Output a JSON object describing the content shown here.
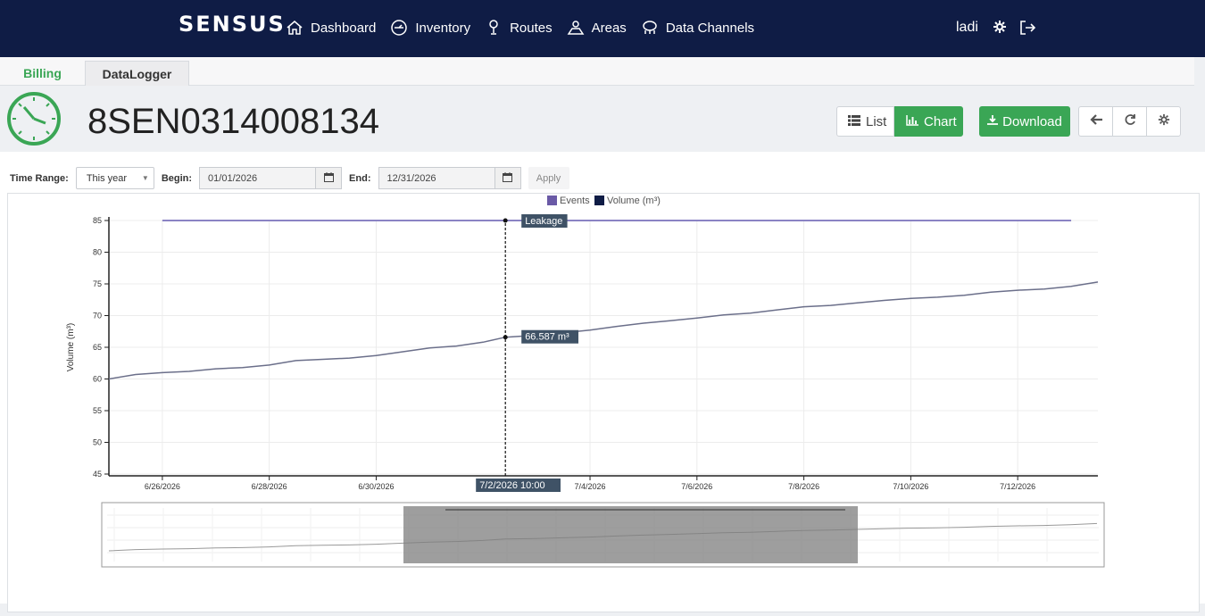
{
  "brand": {
    "logo_text": "SENSUS"
  },
  "nav": {
    "items": [
      {
        "label": "Dashboard",
        "icon": "home-icon"
      },
      {
        "label": "Inventory",
        "icon": "meter-icon"
      },
      {
        "label": "Routes",
        "icon": "route-pin-icon"
      },
      {
        "label": "Areas",
        "icon": "map-area-icon"
      },
      {
        "label": "Data Channels",
        "icon": "data-channels-icon"
      }
    ],
    "user": "ladi"
  },
  "tabs": [
    {
      "label": "Billing"
    },
    {
      "label": "DataLogger"
    }
  ],
  "device": {
    "title": "8SEN0314008134"
  },
  "actions": {
    "list_label": "List",
    "chart_label": "Chart",
    "download_label": "Download"
  },
  "filters": {
    "time_range_label": "Time Range:",
    "time_range_value": "This year",
    "begin_label": "Begin:",
    "begin_value": "01/01/2026",
    "end_label": "End:",
    "end_value": "12/31/2026",
    "apply_label": "Apply"
  },
  "colors": {
    "accent": "#3aa655",
    "navbar": "#0f1c45",
    "events": "#6a5aa6",
    "volume": "#0f1c45"
  },
  "chart_data": {
    "type": "line",
    "legend": [
      "Events",
      "Volume (m³)"
    ],
    "legend_placement": "top-center",
    "ylabel": "Volume (m³)",
    "ylim": [
      45,
      85
    ],
    "yticks": [
      45,
      50,
      55,
      60,
      65,
      70,
      75,
      80,
      85
    ],
    "xticks": [
      "6/26/2026",
      "6/28/2026",
      "6/30/2026",
      "7/4/2026",
      "7/6/2026",
      "7/8/2026",
      "7/10/2026",
      "7/12/2026"
    ],
    "xrange_days": [
      "6/25/2026 0:00",
      "7/13/2026 12:00"
    ],
    "grid": true,
    "series": [
      {
        "name": "Volume (m³)",
        "x": [
          "6/25/2026 0:00",
          "6/25/2026 12:00",
          "6/26/2026 0:00",
          "6/26/2026 12:00",
          "6/27/2026 0:00",
          "6/27/2026 12:00",
          "6/28/2026 0:00",
          "6/28/2026 12:00",
          "6/29/2026 0:00",
          "6/29/2026 12:00",
          "6/30/2026 0:00",
          "6/30/2026 12:00",
          "7/1/2026 0:00",
          "7/1/2026 12:00",
          "7/2/2026 0:00",
          "7/2/2026 10:00",
          "7/3/2026 0:00",
          "7/3/2026 12:00",
          "7/4/2026 0:00",
          "7/4/2026 12:00",
          "7/5/2026 0:00",
          "7/5/2026 12:00",
          "7/6/2026 0:00",
          "7/6/2026 12:00",
          "7/7/2026 0:00",
          "7/7/2026 12:00",
          "7/8/2026 0:00",
          "7/8/2026 12:00",
          "7/9/2026 0:00",
          "7/9/2026 12:00",
          "7/10/2026 0:00",
          "7/10/2026 12:00",
          "7/11/2026 0:00",
          "7/11/2026 12:00",
          "7/12/2026 0:00",
          "7/12/2026 12:00",
          "7/13/2026 0:00",
          "7/13/2026 12:00"
        ],
        "values": [
          60.0,
          60.7,
          61.0,
          61.2,
          61.6,
          61.8,
          62.2,
          62.9,
          63.1,
          63.3,
          63.7,
          64.3,
          64.9,
          65.2,
          65.8,
          66.587,
          66.9,
          67.3,
          67.7,
          68.3,
          68.8,
          69.2,
          69.6,
          70.1,
          70.4,
          70.9,
          71.4,
          71.6,
          72.0,
          72.4,
          72.7,
          72.9,
          73.2,
          73.7,
          74.0,
          74.2,
          74.6,
          75.3
        ]
      },
      {
        "name": "Events",
        "x": [
          "6/26/2026 0:00",
          "7/13/2026 0:00"
        ],
        "values": [
          85,
          85
        ]
      }
    ],
    "tooltip_x": "7/2/2026 10:00",
    "tooltip_value": "66.587 m³",
    "event_label": "Leakage"
  }
}
